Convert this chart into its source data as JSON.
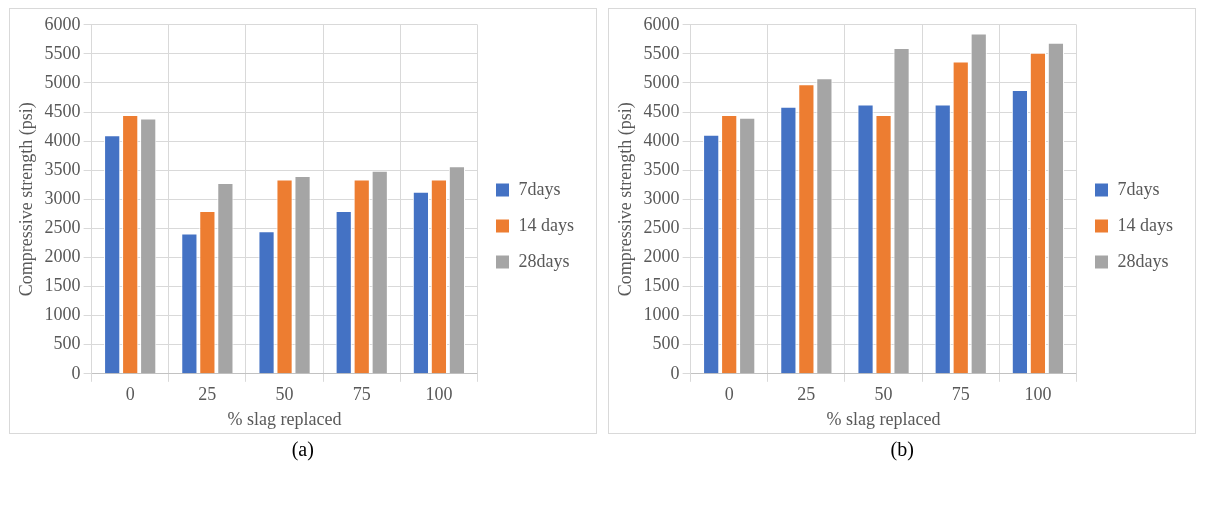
{
  "chart_data": [
    {
      "type": "bar",
      "xlabel": "% slag replaced",
      "ylabel": "Compressive strength (psi)",
      "categories": [
        "0",
        "25",
        "50",
        "75",
        "100"
      ],
      "series": [
        {
          "name": "7days",
          "color": "#4472c4",
          "values": [
            4100,
            2410,
            2450,
            2800,
            3130
          ]
        },
        {
          "name": "14 days",
          "color": "#ed7d31",
          "values": [
            4450,
            2800,
            3340,
            3340,
            3340
          ]
        },
        {
          "name": "28days",
          "color": "#a5a5a5",
          "values": [
            4390,
            3280,
            3400,
            3490,
            3570
          ]
        }
      ],
      "ylim": [
        0,
        6000
      ],
      "yticks": [
        0,
        500,
        1000,
        1500,
        2000,
        2500,
        3000,
        3500,
        4000,
        4500,
        5000,
        5500,
        6000
      ],
      "grid": true,
      "legend": "right",
      "annotations": [
        "(a)"
      ]
    },
    {
      "type": "bar",
      "xlabel": "% slag replaced",
      "ylabel": "Compressive strength (psi)",
      "categories": [
        "0",
        "25",
        "50",
        "75",
        "100"
      ],
      "series": [
        {
          "name": "7days",
          "color": "#4472c4",
          "values": [
            4110,
            4590,
            4630,
            4630,
            4880
          ]
        },
        {
          "name": "14 days",
          "color": "#ed7d31",
          "values": [
            4450,
            4980,
            4450,
            5370,
            5520
          ]
        },
        {
          "name": "28days",
          "color": "#a5a5a5",
          "values": [
            4400,
            5080,
            5600,
            5850,
            5690
          ]
        }
      ],
      "ylim": [
        0,
        6000
      ],
      "yticks": [
        0,
        500,
        1000,
        1500,
        2000,
        2500,
        3000,
        3500,
        4000,
        4500,
        5000,
        5500,
        6000
      ],
      "grid": true,
      "legend": "right",
      "annotations": [
        "(b)"
      ]
    }
  ]
}
